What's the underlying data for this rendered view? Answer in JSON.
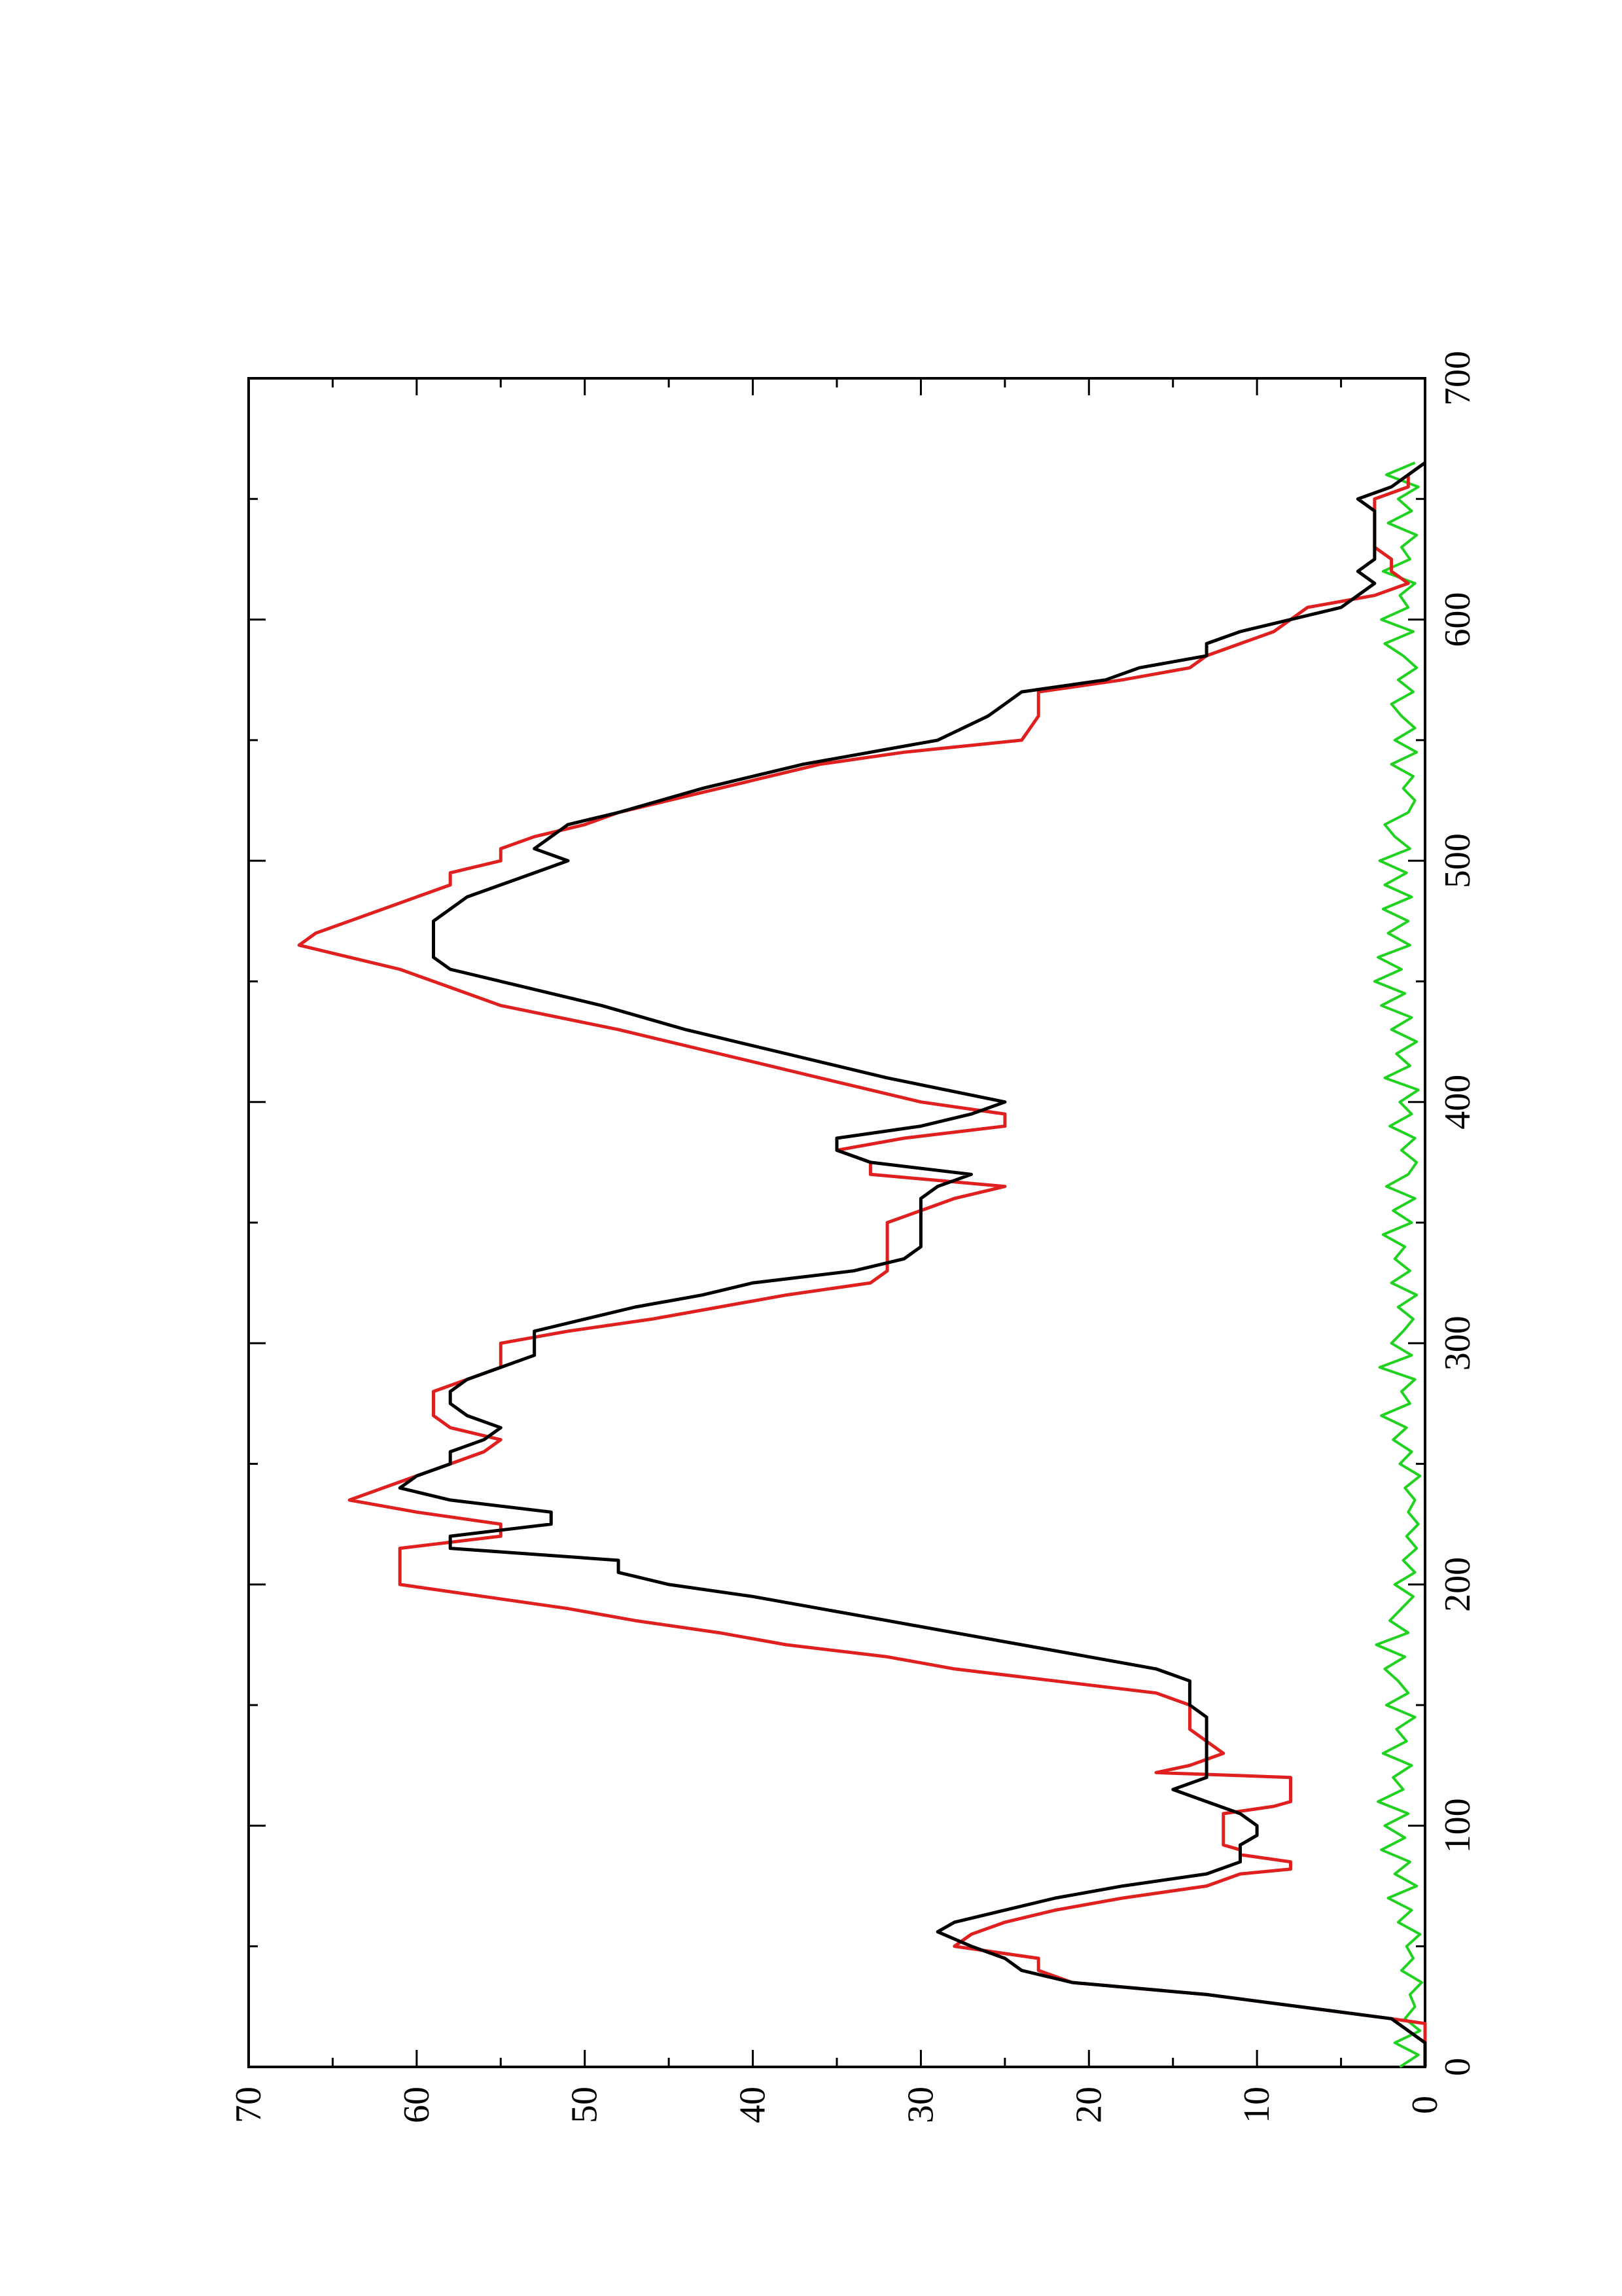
{
  "chart_data": {
    "type": "line",
    "orientation": "rotated-90-ccw",
    "title": "",
    "xlabel": "",
    "ylabel": "",
    "xlim": [
      0,
      700
    ],
    "ylim": [
      0,
      70
    ],
    "x_ticks": [
      "0",
      "100",
      "200",
      "300",
      "400",
      "500",
      "600",
      "700"
    ],
    "y_ticks": [
      "0",
      "10",
      "20",
      "30",
      "40",
      "50",
      "60",
      "70"
    ],
    "grid": false,
    "legend": "none",
    "series": [
      {
        "color": "#000000",
        "x": [
          0,
          10,
          20,
          30,
          35,
          40,
          45,
          50,
          56,
          60,
          65,
          70,
          75,
          80,
          85,
          88,
          92,
          96,
          100,
          105,
          110,
          115,
          120,
          125,
          130,
          140,
          145,
          150,
          155,
          160,
          165,
          170,
          175,
          180,
          185,
          190,
          195,
          200,
          205,
          210,
          212,
          215,
          220,
          225,
          230,
          235,
          240,
          245,
          250,
          255,
          260,
          265,
          270,
          275,
          280,
          285,
          290,
          295,
          300,
          305,
          310,
          315,
          320,
          325,
          330,
          335,
          340,
          345,
          350,
          355,
          360,
          365,
          370,
          375,
          380,
          385,
          390,
          395,
          400,
          410,
          420,
          430,
          440,
          450,
          455,
          460,
          465,
          470,
          475,
          480,
          485,
          490,
          495,
          500,
          505,
          510,
          515,
          520,
          530,
          540,
          550,
          560,
          565,
          570,
          575,
          580,
          585,
          590,
          595,
          600,
          605,
          610,
          615,
          620,
          625,
          630,
          635,
          640,
          645,
          650,
          655,
          660,
          665
        ],
        "y": [
          0,
          0,
          2,
          13,
          21,
          24,
          25,
          27,
          29,
          28,
          25,
          22,
          18,
          13,
          11,
          11,
          11,
          10,
          10,
          11,
          13,
          15,
          13,
          13,
          13,
          13,
          13,
          14,
          14,
          14,
          16,
          20,
          24,
          28,
          32,
          36,
          40,
          45,
          48,
          48,
          52,
          58,
          58,
          52,
          52,
          58,
          61,
          60,
          58,
          58,
          56,
          55,
          57,
          58,
          58,
          57,
          55,
          53,
          53,
          53,
          50,
          47,
          43,
          40,
          34,
          31,
          30,
          30,
          30,
          30,
          30,
          29,
          27,
          33,
          35,
          35,
          30,
          27,
          25,
          32,
          38,
          44,
          49,
          55,
          58,
          59,
          59,
          59,
          59,
          58,
          57,
          55,
          53,
          51,
          53,
          52,
          51,
          48,
          43,
          37,
          29,
          26,
          25,
          24,
          19,
          17,
          13,
          13,
          11,
          8,
          5,
          4,
          3,
          4,
          3,
          3,
          3,
          3,
          3,
          4,
          2,
          1,
          0
        ]
      },
      {
        "color": "#e01f1f",
        "x": [
          0,
          10,
          18,
          20,
          30,
          35,
          40,
          45,
          50,
          55,
          60,
          65,
          70,
          75,
          80,
          82,
          85,
          88,
          90,
          92,
          95,
          100,
          105,
          108,
          110,
          115,
          120,
          122,
          125,
          130,
          140,
          145,
          150,
          155,
          160,
          165,
          170,
          175,
          180,
          185,
          190,
          195,
          200,
          205,
          210,
          212,
          215,
          220,
          225,
          230,
          235,
          240,
          245,
          250,
          255,
          260,
          265,
          270,
          275,
          280,
          285,
          290,
          295,
          300,
          305,
          310,
          315,
          320,
          325,
          330,
          335,
          340,
          345,
          350,
          355,
          360,
          365,
          370,
          375,
          380,
          385,
          390,
          395,
          400,
          410,
          420,
          430,
          440,
          450,
          455,
          460,
          465,
          470,
          475,
          480,
          485,
          490,
          495,
          500,
          505,
          510,
          515,
          520,
          530,
          540,
          545,
          550,
          560,
          565,
          570,
          575,
          580,
          585,
          590,
          595,
          600,
          605,
          610,
          615,
          620,
          625,
          630,
          635,
          640,
          645,
          650,
          655,
          660,
          665
        ],
        "y": [
          0,
          0,
          0,
          2,
          13,
          21,
          23,
          23,
          28,
          27,
          25,
          22,
          18,
          13,
          11,
          8,
          8,
          11,
          11,
          12,
          12,
          12,
          12,
          9,
          8,
          8,
          8,
          16,
          14,
          12,
          14,
          14,
          14,
          16,
          22,
          28,
          32,
          38,
          42,
          47,
          51,
          56,
          61,
          61,
          61,
          61,
          61,
          55,
          55,
          60,
          64,
          62,
          60,
          58,
          56,
          55,
          58,
          59,
          59,
          59,
          57,
          55,
          55,
          55,
          51,
          46,
          42,
          38,
          33,
          32,
          32,
          32,
          32,
          32,
          30,
          28,
          25,
          33,
          33,
          35,
          31,
          25,
          25,
          30,
          36,
          42,
          48,
          55,
          59,
          61,
          64,
          67,
          66,
          64,
          62,
          60,
          58,
          58,
          55,
          55,
          53,
          50,
          48,
          42,
          36,
          31,
          24,
          23,
          23,
          23,
          18,
          14,
          13,
          11,
          9,
          8,
          7,
          3,
          1,
          2,
          2,
          3,
          3,
          3,
          3,
          3,
          1,
          1,
          0
        ]
      },
      {
        "color": "#1fd21f",
        "x": [
          0,
          5,
          10,
          15,
          20,
          25,
          30,
          35,
          40,
          45,
          50,
          55,
          60,
          65,
          70,
          75,
          80,
          85,
          90,
          95,
          100,
          105,
          110,
          115,
          120,
          125,
          130,
          135,
          140,
          145,
          150,
          155,
          160,
          165,
          170,
          175,
          180,
          185,
          190,
          195,
          200,
          205,
          210,
          215,
          220,
          225,
          230,
          235,
          240,
          245,
          250,
          255,
          260,
          265,
          270,
          275,
          280,
          285,
          290,
          295,
          300,
          305,
          310,
          315,
          320,
          325,
          330,
          335,
          340,
          345,
          350,
          355,
          360,
          365,
          370,
          375,
          380,
          385,
          390,
          395,
          400,
          405,
          410,
          415,
          420,
          425,
          430,
          435,
          440,
          445,
          450,
          455,
          460,
          465,
          470,
          475,
          480,
          485,
          490,
          495,
          500,
          505,
          510,
          515,
          520,
          525,
          530,
          535,
          540,
          545,
          550,
          555,
          560,
          565,
          570,
          575,
          580,
          585,
          590,
          595,
          600,
          605,
          610,
          615,
          620,
          625,
          630,
          635,
          640,
          645,
          650,
          655,
          660,
          665
        ],
        "y": [
          1.5,
          0.4,
          1.8,
          0.3,
          1.2,
          0.6,
          0.9,
          0.2,
          1.4,
          0.7,
          1.1,
          0.3,
          1.6,
          0.8,
          2.2,
          0.5,
          1.8,
          0.9,
          2.6,
          1.2,
          2.4,
          1.0,
          2.8,
          1.3,
          1.9,
          0.8,
          2.5,
          1.1,
          1.7,
          0.6,
          2.3,
          1.0,
          1.6,
          2.4,
          1.2,
          2.9,
          1.0,
          2.1,
          1.4,
          0.7,
          1.8,
          0.6,
          1.3,
          0.5,
          1.1,
          0.4,
          1.0,
          0.6,
          1.2,
          0.3,
          1.5,
          0.8,
          1.9,
          1.1,
          2.6,
          0.9,
          1.4,
          0.6,
          2.7,
          0.8,
          2.0,
          1.3,
          0.7,
          1.6,
          0.5,
          2.0,
          0.9,
          1.8,
          1.2,
          2.5,
          0.8,
          1.9,
          0.6,
          2.3,
          1.0,
          0.5,
          1.4,
          0.6,
          2.1,
          0.8,
          1.5,
          0.4,
          2.4,
          0.9,
          1.7,
          0.5,
          2.0,
          0.8,
          2.6,
          1.2,
          3.0,
          1.4,
          2.8,
          0.9,
          2.2,
          1.0,
          2.5,
          0.8,
          2.4,
          1.1,
          2.7,
          0.9,
          1.8,
          2.4,
          1.0,
          0.6,
          1.3,
          0.7,
          2.0,
          0.5,
          1.8,
          0.6,
          1.4,
          2.0,
          0.7,
          1.6,
          0.5,
          1.3,
          2.4,
          0.7,
          2.6,
          1.0,
          1.5,
          0.6,
          2.5,
          0.9,
          1.4,
          0.5,
          2.2,
          0.8,
          1.6,
          0.4,
          2.3,
          0.6
        ]
      }
    ]
  }
}
